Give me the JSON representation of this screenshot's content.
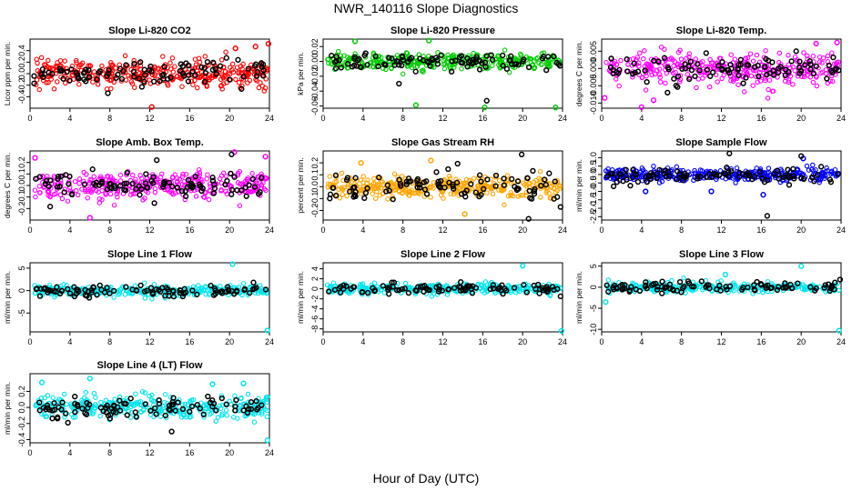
{
  "figure": {
    "title": "NWR_140116  Slope Diagnostics",
    "xlabel": "Hour of Day (UTC)"
  },
  "chart_data": [
    {
      "type": "scatter",
      "title": "Slope Li-820 CO2",
      "ylabel": "Licor ppm per min.",
      "xlim": [
        0,
        24
      ],
      "xticks": [
        0,
        4,
        8,
        12,
        16,
        20,
        24
      ],
      "ylim": [
        -0.6,
        0.6
      ],
      "yticks": [
        -0.4,
        -0.2,
        0.0,
        0.2,
        0.4
      ],
      "ytick_labels": [
        "-0.4",
        "-0.2",
        "0.0",
        "0.2",
        "0.4"
      ],
      "grid": false,
      "series": [
        {
          "color": "#ff0000",
          "kind": "dense",
          "spread": 0.2,
          "outliers": [
            [
              12.2,
              -0.58
            ],
            [
              23.9,
              0.52
            ],
            [
              22.6,
              0.47
            ],
            [
              20.6,
              0.44
            ]
          ]
        },
        {
          "color": "#000000",
          "kind": "sparse",
          "spread": 0.16,
          "outliers": [
            [
              7.8,
              -0.34
            ],
            [
              0.4,
              -0.17
            ]
          ]
        }
      ]
    },
    {
      "type": "scatter",
      "title": "Slope Li-820 Pressure",
      "ylabel": "kPa per min.",
      "xlim": [
        0,
        24
      ],
      "xticks": [
        0,
        4,
        8,
        12,
        16,
        20,
        24
      ],
      "ylim": [
        -0.063,
        0.03
      ],
      "yticks": [
        -0.06,
        -0.04,
        -0.02,
        0.0,
        0.02
      ],
      "ytick_labels": [
        "-0.06",
        "-0.04",
        "-0.02",
        "0.00",
        "0.02"
      ],
      "grid": false,
      "series": [
        {
          "color": "#00cc00",
          "kind": "dense",
          "spread": 0.008,
          "outliers": [
            [
              16.2,
              -0.062
            ],
            [
              23.3,
              -0.062
            ],
            [
              9.3,
              -0.059
            ],
            [
              3.2,
              0.027
            ],
            [
              10.6,
              0.028
            ]
          ]
        },
        {
          "color": "#000000",
          "kind": "sparse",
          "spread": 0.008,
          "outliers": [
            [
              16.4,
              -0.053
            ],
            [
              7.6,
              -0.03
            ]
          ]
        }
      ]
    },
    {
      "type": "scatter",
      "title": "Slope Li-820 Temp.",
      "ylabel": "degrees C per min.",
      "xlim": [
        0,
        24
      ],
      "xticks": [
        0,
        4,
        8,
        12,
        16,
        20,
        24
      ],
      "ylim": [
        -0.0115,
        0.0085
      ],
      "yticks": [
        -0.01,
        -0.005,
        0.0,
        0.005
      ],
      "ytick_labels": [
        "-0.010",
        "-0.005",
        "0.000",
        "0.005"
      ],
      "grid": false,
      "series": [
        {
          "color": "#ff00ff",
          "kind": "dense",
          "spread": 0.0035,
          "outliers": [
            [
              4.0,
              -0.0112
            ],
            [
              0.3,
              -0.0085
            ],
            [
              23.6,
              0.0075
            ],
            [
              21.5,
              0.0072
            ],
            [
              5.2,
              -0.0092
            ]
          ]
        },
        {
          "color": "#000000",
          "kind": "sparse",
          "spread": 0.0026,
          "outliers": [
            [
              6.6,
              -0.007
            ],
            [
              19.5,
              0.005
            ]
          ]
        }
      ]
    },
    {
      "type": "scatter",
      "title": "Slope Amb. Box Temp.",
      "ylabel": "degrees C per min.",
      "xlim": [
        0,
        24
      ],
      "xticks": [
        0,
        4,
        8,
        12,
        16,
        20,
        24
      ],
      "ylim": [
        -0.3,
        0.3
      ],
      "yticks": [
        -0.2,
        -0.1,
        0.0,
        0.1,
        0.2
      ],
      "ytick_labels": [
        "-0.2",
        "-0.1",
        "0.0",
        "0.1",
        "0.2"
      ],
      "grid": false,
      "series": [
        {
          "color": "#ff00ff",
          "kind": "dense",
          "spread": 0.09,
          "outliers": [
            [
              6.0,
              -0.28
            ],
            [
              20.5,
              0.29
            ],
            [
              0.5,
              0.24
            ],
            [
              23.6,
              0.25
            ]
          ]
        },
        {
          "color": "#000000",
          "kind": "sparse",
          "spread": 0.08,
          "outliers": [
            [
              20.2,
              0.27
            ],
            [
              12.7,
              0.22
            ]
          ]
        }
      ]
    },
    {
      "type": "scatter",
      "title": "Slope Gas Stream RH",
      "ylabel": "percent per min.",
      "xlim": [
        0,
        24
      ],
      "xticks": [
        0,
        4,
        8,
        12,
        16,
        20,
        24
      ],
      "ylim": [
        -0.28,
        0.3
      ],
      "yticks": [
        -0.2,
        -0.1,
        0.0,
        0.1,
        0.2
      ],
      "ytick_labels": [
        "-0.2",
        "-0.1",
        "0.0",
        "0.1",
        "0.2"
      ],
      "grid": false,
      "series": [
        {
          "color": "#ffa500",
          "kind": "dense",
          "spread": 0.07,
          "outliers": [
            [
              14.2,
              -0.23
            ],
            [
              10.8,
              0.22
            ],
            [
              3.8,
              0.2
            ]
          ]
        },
        {
          "color": "#000000",
          "kind": "sparse",
          "spread": 0.09,
          "outliers": [
            [
              19.9,
              0.27
            ],
            [
              20.6,
              -0.27
            ],
            [
              23.8,
              -0.17
            ]
          ]
        }
      ]
    },
    {
      "type": "scatter",
      "title": "Slope Sample Flow",
      "ylabel": "ml/min per min.",
      "xlim": [
        0,
        24
      ],
      "xticks": [
        0,
        4,
        8,
        12,
        16,
        20,
        24
      ],
      "ylim": [
        -2.7,
        1.4
      ],
      "yticks": [
        -2.5,
        -2.0,
        -1.5,
        -1.0,
        -0.5,
        0.0,
        0.5,
        1.0
      ],
      "ytick_labels": [
        "-2.5",
        "-2.0",
        "-1.5",
        "-1.0",
        "-0.5",
        "0.0",
        "0.5",
        "1.0"
      ],
      "grid": false,
      "series": [
        {
          "color": "#0000ff",
          "kind": "dense",
          "spread": 0.3,
          "outliers": [
            [
              4.4,
              -1.0
            ],
            [
              11.0,
              -1.0
            ],
            [
              16.2,
              -1.2
            ],
            [
              20.2,
              0.95
            ]
          ]
        },
        {
          "color": "#000000",
          "kind": "sparse",
          "spread": 0.3,
          "outliers": [
            [
              16.6,
              -2.45
            ],
            [
              12.8,
              1.25
            ],
            [
              20.0,
              1.1
            ],
            [
              1.2,
              -0.7
            ]
          ]
        }
      ]
    },
    {
      "type": "scatter",
      "title": "Slope Line 1 Flow",
      "ylabel": "ml/min per min.",
      "xlim": [
        0,
        24
      ],
      "xticks": [
        0,
        4,
        8,
        12,
        16,
        20,
        24
      ],
      "ylim": [
        -9.2,
        6.2
      ],
      "yticks": [
        -5,
        0,
        5
      ],
      "ytick_labels": [
        "-5",
        "0",
        "5"
      ],
      "grid": false,
      "series": [
        {
          "color": "#00e5ee",
          "kind": "dense",
          "spread": 0.9,
          "outliers": [
            [
              20.3,
              5.9
            ],
            [
              23.8,
              -8.9
            ]
          ]
        },
        {
          "color": "#000000",
          "kind": "sparse",
          "spread": 0.9,
          "outliers": [
            [
              22.4,
              1.8
            ]
          ]
        }
      ]
    },
    {
      "type": "scatter",
      "title": "Slope Line 2 Flow",
      "ylabel": "ml/min per min.",
      "xlim": [
        0,
        24
      ],
      "xticks": [
        0,
        4,
        8,
        12,
        16,
        20,
        24
      ],
      "ylim": [
        -8.6,
        5.2
      ],
      "yticks": [
        -8,
        -6,
        -4,
        -2,
        0,
        2,
        4
      ],
      "ytick_labels": [
        "-8",
        "-6",
        "-4",
        "-2",
        "0",
        "2",
        "4"
      ],
      "grid": false,
      "series": [
        {
          "color": "#00e5ee",
          "kind": "dense",
          "spread": 0.8,
          "outliers": [
            [
              20.0,
              4.6
            ],
            [
              23.9,
              -8.4
            ]
          ]
        },
        {
          "color": "#000000",
          "kind": "sparse",
          "spread": 0.8,
          "outliers": [
            [
              23.8,
              -1.5
            ]
          ]
        }
      ]
    },
    {
      "type": "scatter",
      "title": "Slope Line 3 Flow",
      "ylabel": "ml/min per min.",
      "xlim": [
        0,
        24
      ],
      "xticks": [
        0,
        4,
        8,
        12,
        16,
        20,
        24
      ],
      "ylim": [
        -10.6,
        5.8
      ],
      "yticks": [
        -10,
        -5,
        0,
        5
      ],
      "ytick_labels": [
        "-10",
        "-5",
        "0",
        "5"
      ],
      "grid": false,
      "series": [
        {
          "color": "#00e5ee",
          "kind": "dense",
          "spread": 0.9,
          "outliers": [
            [
              12.4,
              3.0
            ],
            [
              20.0,
              5.0
            ],
            [
              23.8,
              -10.3
            ],
            [
              0.4,
              -3.5
            ]
          ]
        },
        {
          "color": "#000000",
          "kind": "sparse",
          "spread": 0.9,
          "outliers": [
            [
              23.9,
              1.8
            ]
          ]
        }
      ]
    },
    {
      "type": "scatter",
      "title": "Slope Line 4 (LT) Flow",
      "ylabel": "ml/min per min.",
      "xlim": [
        0,
        24
      ],
      "xticks": [
        0,
        4,
        8,
        12,
        16,
        20,
        24
      ],
      "ylim": [
        -0.44,
        0.42
      ],
      "yticks": [
        -0.4,
        -0.2,
        0.0,
        0.2
      ],
      "ytick_labels": [
        "-0.4",
        "-0.2",
        "0.0",
        "0.2"
      ],
      "grid": false,
      "series": [
        {
          "color": "#00e5ee",
          "kind": "dense",
          "spread": 0.11,
          "outliers": [
            [
              1.2,
              0.31
            ],
            [
              6.0,
              0.36
            ],
            [
              23.8,
              -0.41
            ],
            [
              21.4,
              0.3
            ],
            [
              18.3,
              0.29
            ]
          ]
        },
        {
          "color": "#000000",
          "kind": "sparse",
          "spread": 0.11,
          "outliers": [
            [
              14.2,
              -0.3
            ],
            [
              3.8,
              -0.19
            ]
          ]
        }
      ]
    }
  ]
}
